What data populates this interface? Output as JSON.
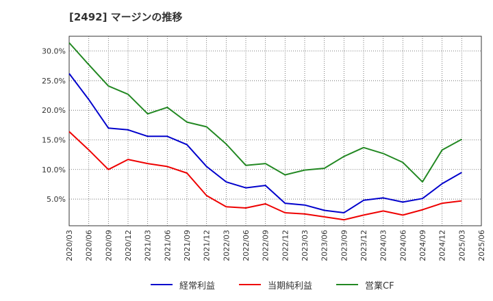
{
  "chart_data": {
    "type": "line",
    "title": "[2492]  マージンの推移",
    "x": [
      "2020/03",
      "2020/06",
      "2020/09",
      "2020/12",
      "2021/03",
      "2021/06",
      "2021/09",
      "2021/12",
      "2022/03",
      "2022/06",
      "2022/09",
      "2022/12",
      "2023/03",
      "2023/06",
      "2023/09",
      "2023/12",
      "2024/03",
      "2024/06",
      "2024/09",
      "2024/12",
      "2025/03",
      "2025/06"
    ],
    "ylim": [
      0.5,
      32.5
    ],
    "yticks": [
      5.0,
      10.0,
      15.0,
      20.0,
      25.0,
      30.0
    ],
    "ytick_labels": [
      "5.0%",
      "10.0%",
      "15.0%",
      "20.0%",
      "25.0%",
      "30.0%"
    ],
    "grid": true,
    "legend_position": "bottom",
    "series": [
      {
        "name": "経常利益",
        "color": "#0000cc",
        "values": [
          26.2,
          21.8,
          17.0,
          16.7,
          15.6,
          15.6,
          14.2,
          10.5,
          7.9,
          6.9,
          7.3,
          4.3,
          4.0,
          3.1,
          2.7,
          4.8,
          5.2,
          4.5,
          5.1,
          7.6,
          9.5,
          null
        ]
      },
      {
        "name": "当期純利益",
        "color": "#ee0000",
        "values": [
          16.4,
          13.3,
          10.0,
          11.7,
          11.0,
          10.5,
          9.4,
          5.6,
          3.7,
          3.5,
          4.2,
          2.7,
          2.5,
          2.0,
          1.5,
          2.3,
          3.0,
          2.3,
          3.2,
          4.3,
          4.7,
          null
        ]
      },
      {
        "name": "営業CF",
        "color": "#228822",
        "values": [
          31.4,
          27.7,
          24.1,
          22.7,
          19.4,
          20.5,
          18.0,
          17.2,
          14.3,
          10.7,
          11.0,
          9.1,
          9.9,
          10.2,
          12.2,
          13.7,
          12.7,
          11.2,
          7.9,
          13.3,
          15.1,
          null
        ]
      }
    ]
  }
}
